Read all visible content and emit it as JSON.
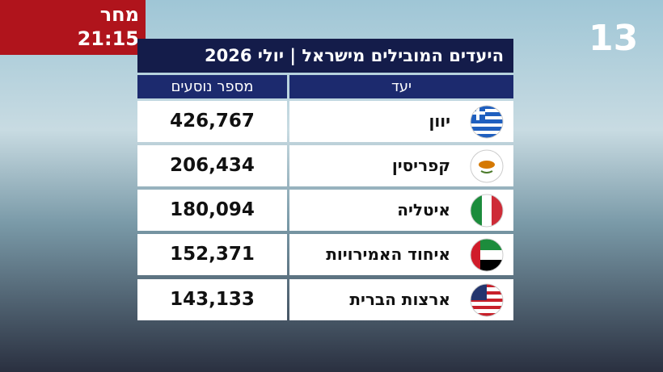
{
  "promo": {
    "label": "מחר",
    "time": "21:15"
  },
  "logo": "13",
  "table": {
    "title": "היעדים המובילים מישראל | יולי 2026",
    "columns": [
      "מספר נוסעים",
      "יעד"
    ],
    "rows": [
      [
        "426,767",
        "יוון"
      ],
      [
        "206,434",
        "קפריסין"
      ],
      [
        "180,094",
        "איטליה"
      ],
      [
        "152,371",
        "איחוד האמירויות"
      ],
      [
        "143,133",
        "ארצות הברית"
      ]
    ]
  }
}
